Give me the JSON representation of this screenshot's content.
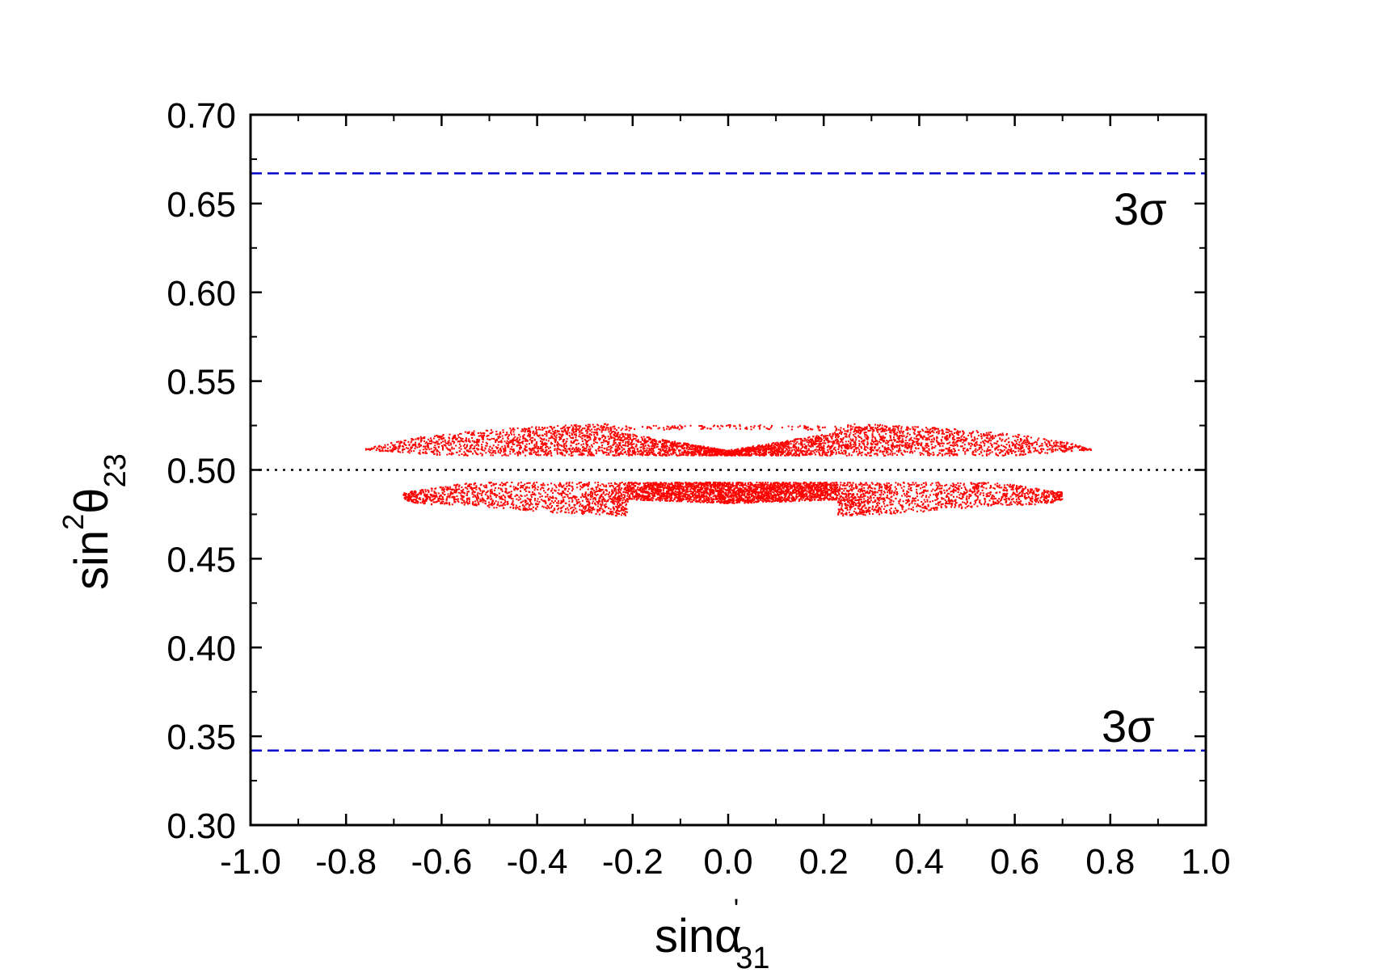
{
  "chart_data": {
    "type": "scatter",
    "title": "",
    "xlabel": {
      "base": "sinα",
      "sup": "'",
      "sub": "31"
    },
    "ylabel": {
      "base": "sin",
      "sup": "2",
      "mid": "θ",
      "sub": "23"
    },
    "xlim": [
      -1.0,
      1.0
    ],
    "ylim": [
      0.3,
      0.7
    ],
    "xticks": [
      "-1.0",
      "-0.8",
      "-0.6",
      "-0.4",
      "-0.2",
      "0.0",
      "0.2",
      "0.4",
      "0.6",
      "0.8",
      "1.0"
    ],
    "yticks": [
      "0.30",
      "0.35",
      "0.40",
      "0.45",
      "0.50",
      "0.55",
      "0.60",
      "0.65",
      "0.70"
    ],
    "grid": false,
    "legend": "none",
    "reference_lines": [
      {
        "y": 0.667,
        "style": "dashed",
        "color": "#0000cc",
        "label": "3σ"
      },
      {
        "y": 0.342,
        "style": "dashed",
        "color": "#0000cc",
        "label": "3σ"
      },
      {
        "y": 0.5,
        "style": "dotted",
        "color": "#000000",
        "label": ""
      }
    ],
    "series": [
      {
        "color": "#ff0000",
        "regions": [
          {
            "band": "upper",
            "y_range": [
              0.508,
              0.526
            ],
            "x_range": [
              -0.76,
              0.76
            ]
          },
          {
            "band": "lower",
            "y_range": [
              0.473,
              0.493
            ],
            "x_range": [
              -0.68,
              0.7
            ]
          }
        ]
      }
    ]
  }
}
